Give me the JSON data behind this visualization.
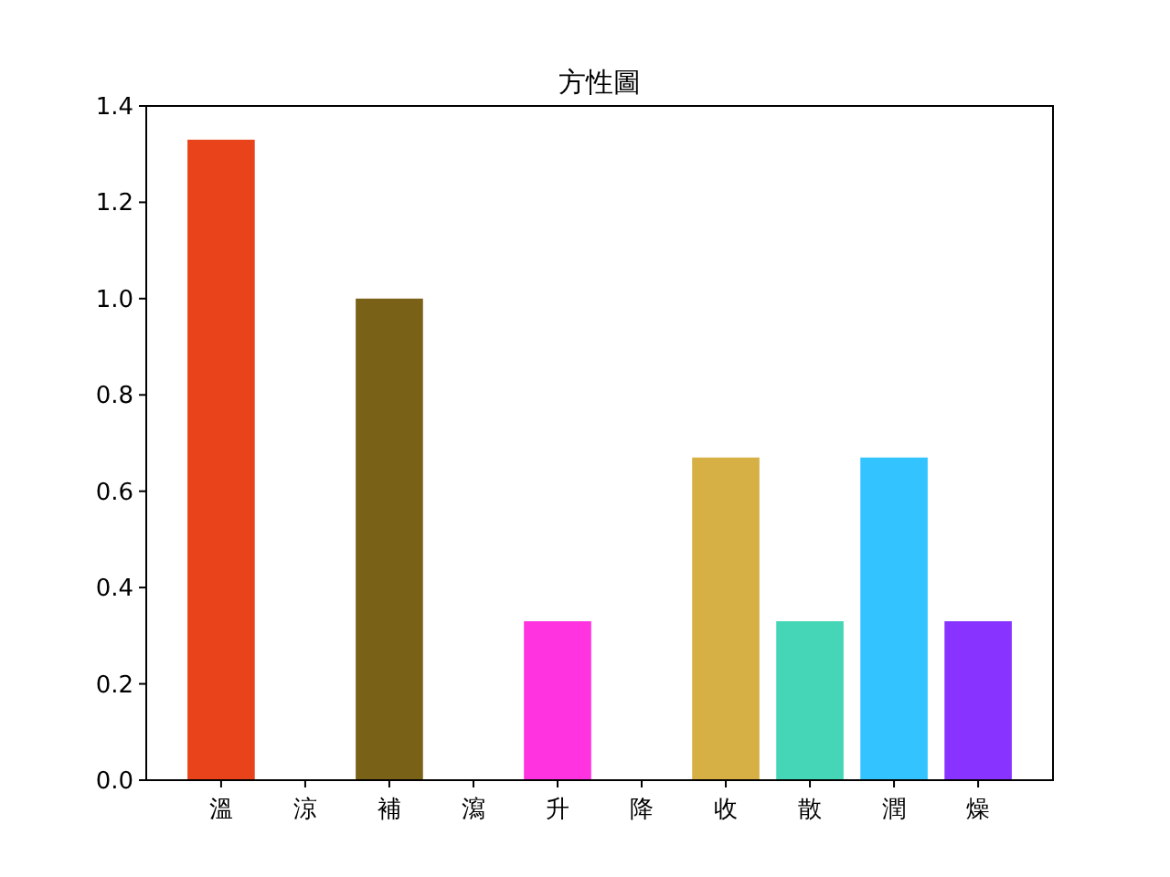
{
  "chart_data": {
    "type": "bar",
    "title": "方性圖",
    "categories": [
      "溫",
      "涼",
      "補",
      "瀉",
      "升",
      "降",
      "收",
      "散",
      "潤",
      "燥"
    ],
    "values": [
      1.33,
      0,
      1.0,
      0,
      0.33,
      0,
      0.67,
      0.33,
      0.67,
      0.33
    ],
    "colors": [
      "#e8431b",
      null,
      "#7a6118",
      null,
      "#ff33e0",
      null,
      "#d6b044",
      "#44d6b6",
      "#33c4ff",
      "#8833ff"
    ],
    "ylim": [
      0,
      1.4
    ],
    "yticks": [
      {
        "value": 0,
        "label": "0.0"
      },
      {
        "value": 0.2,
        "label": "0.2"
      },
      {
        "value": 0.4,
        "label": "0.4"
      },
      {
        "value": 0.6,
        "label": "0.6"
      },
      {
        "value": 0.8,
        "label": "0.8"
      },
      {
        "value": 1.0,
        "label": "1.0"
      },
      {
        "value": 1.2,
        "label": "1.2"
      },
      {
        "value": 1.4,
        "label": "1.4"
      }
    ]
  }
}
